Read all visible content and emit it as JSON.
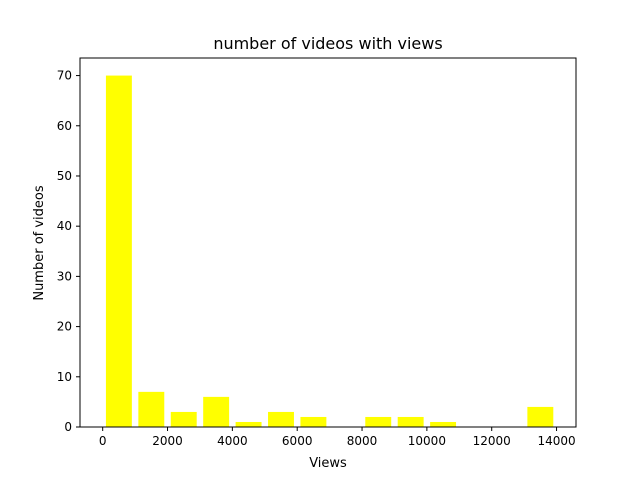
{
  "chart_data": {
    "type": "bar",
    "title": "number of videos with views",
    "xlabel": "Views",
    "ylabel": "Number of videos",
    "xlim": [
      -700,
      14600
    ],
    "ylim": [
      0,
      73.5
    ],
    "xticks": [
      0,
      2000,
      4000,
      6000,
      8000,
      10000,
      12000,
      14000
    ],
    "yticks": [
      0,
      10,
      20,
      30,
      40,
      50,
      60,
      70
    ],
    "grid": false,
    "legend": "none",
    "bar_color": "#ffff00",
    "bin_width": 1000,
    "bar_width": 800,
    "bins": [
      {
        "x_start": 100,
        "x_end": 900,
        "value": 70
      },
      {
        "x_start": 1100,
        "x_end": 1900,
        "value": 7
      },
      {
        "x_start": 2100,
        "x_end": 2900,
        "value": 3
      },
      {
        "x_start": 3100,
        "x_end": 3900,
        "value": 6
      },
      {
        "x_start": 4100,
        "x_end": 4900,
        "value": 1
      },
      {
        "x_start": 5100,
        "x_end": 5900,
        "value": 3
      },
      {
        "x_start": 6100,
        "x_end": 6900,
        "value": 2
      },
      {
        "x_start": 8100,
        "x_end": 8900,
        "value": 2
      },
      {
        "x_start": 9100,
        "x_end": 9900,
        "value": 2
      },
      {
        "x_start": 10100,
        "x_end": 10900,
        "value": 1
      },
      {
        "x_start": 13100,
        "x_end": 13900,
        "value": 4
      }
    ]
  }
}
